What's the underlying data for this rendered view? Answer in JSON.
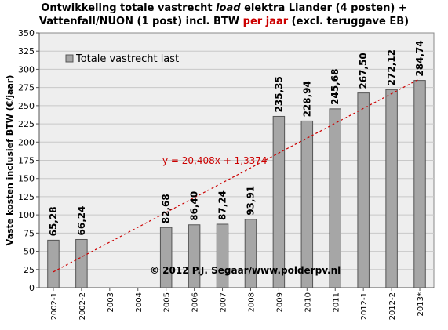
{
  "title": {
    "part1": "Ontwikkeling  totale vastrecht ",
    "part2": "load",
    "part3": " elektra Liander (4 posten) +",
    "line2a": "Vattenfall/NUON (1 post) incl. BTW ",
    "line2b": "per jaar",
    "line2c": " (excl. teruggave EB)"
  },
  "colors": {
    "bar": "#a6a6a6",
    "bar_edge": "#555555",
    "plot_bg": "#eeeeee",
    "trend": "#cc0000",
    "title_accent": "#cc0000"
  },
  "chart_data": {
    "type": "bar",
    "categories": [
      "2002-1",
      "2002-2",
      "2003",
      "2004",
      "2005",
      "2006",
      "2007",
      "2008",
      "2009",
      "2010",
      "2011",
      "2012-1",
      "2012-2",
      "2013*"
    ],
    "series": [
      {
        "name": "Totale vastrecht last",
        "values": [
          65.28,
          66.24,
          null,
          null,
          82.68,
          86.4,
          87.24,
          93.91,
          235.35,
          228.94,
          245.68,
          267.5,
          272.12,
          284.74
        ],
        "labels": [
          "65,28",
          "66,24",
          "",
          "",
          "82,68",
          "86,40",
          "87,24",
          "93,91",
          "235,35",
          "228,94",
          "245,68",
          "267,50",
          "272,12",
          "284,74"
        ]
      }
    ],
    "ylabel": "Vaste kosten inclusief BTW (€/jaar)",
    "xlabel": "",
    "ylim": [
      0,
      350
    ],
    "yticks": [
      0,
      25,
      50,
      75,
      100,
      125,
      150,
      175,
      200,
      225,
      250,
      275,
      300,
      325,
      350
    ],
    "grid": true,
    "legend": "top-left",
    "trendline": {
      "label": "y = 20,408x + 1,3374",
      "slope": 20.408,
      "intercept": 1.3374,
      "style": "dashed"
    },
    "annotation": "© 2012 P.J. Segaar/www.polderpv.nl"
  }
}
